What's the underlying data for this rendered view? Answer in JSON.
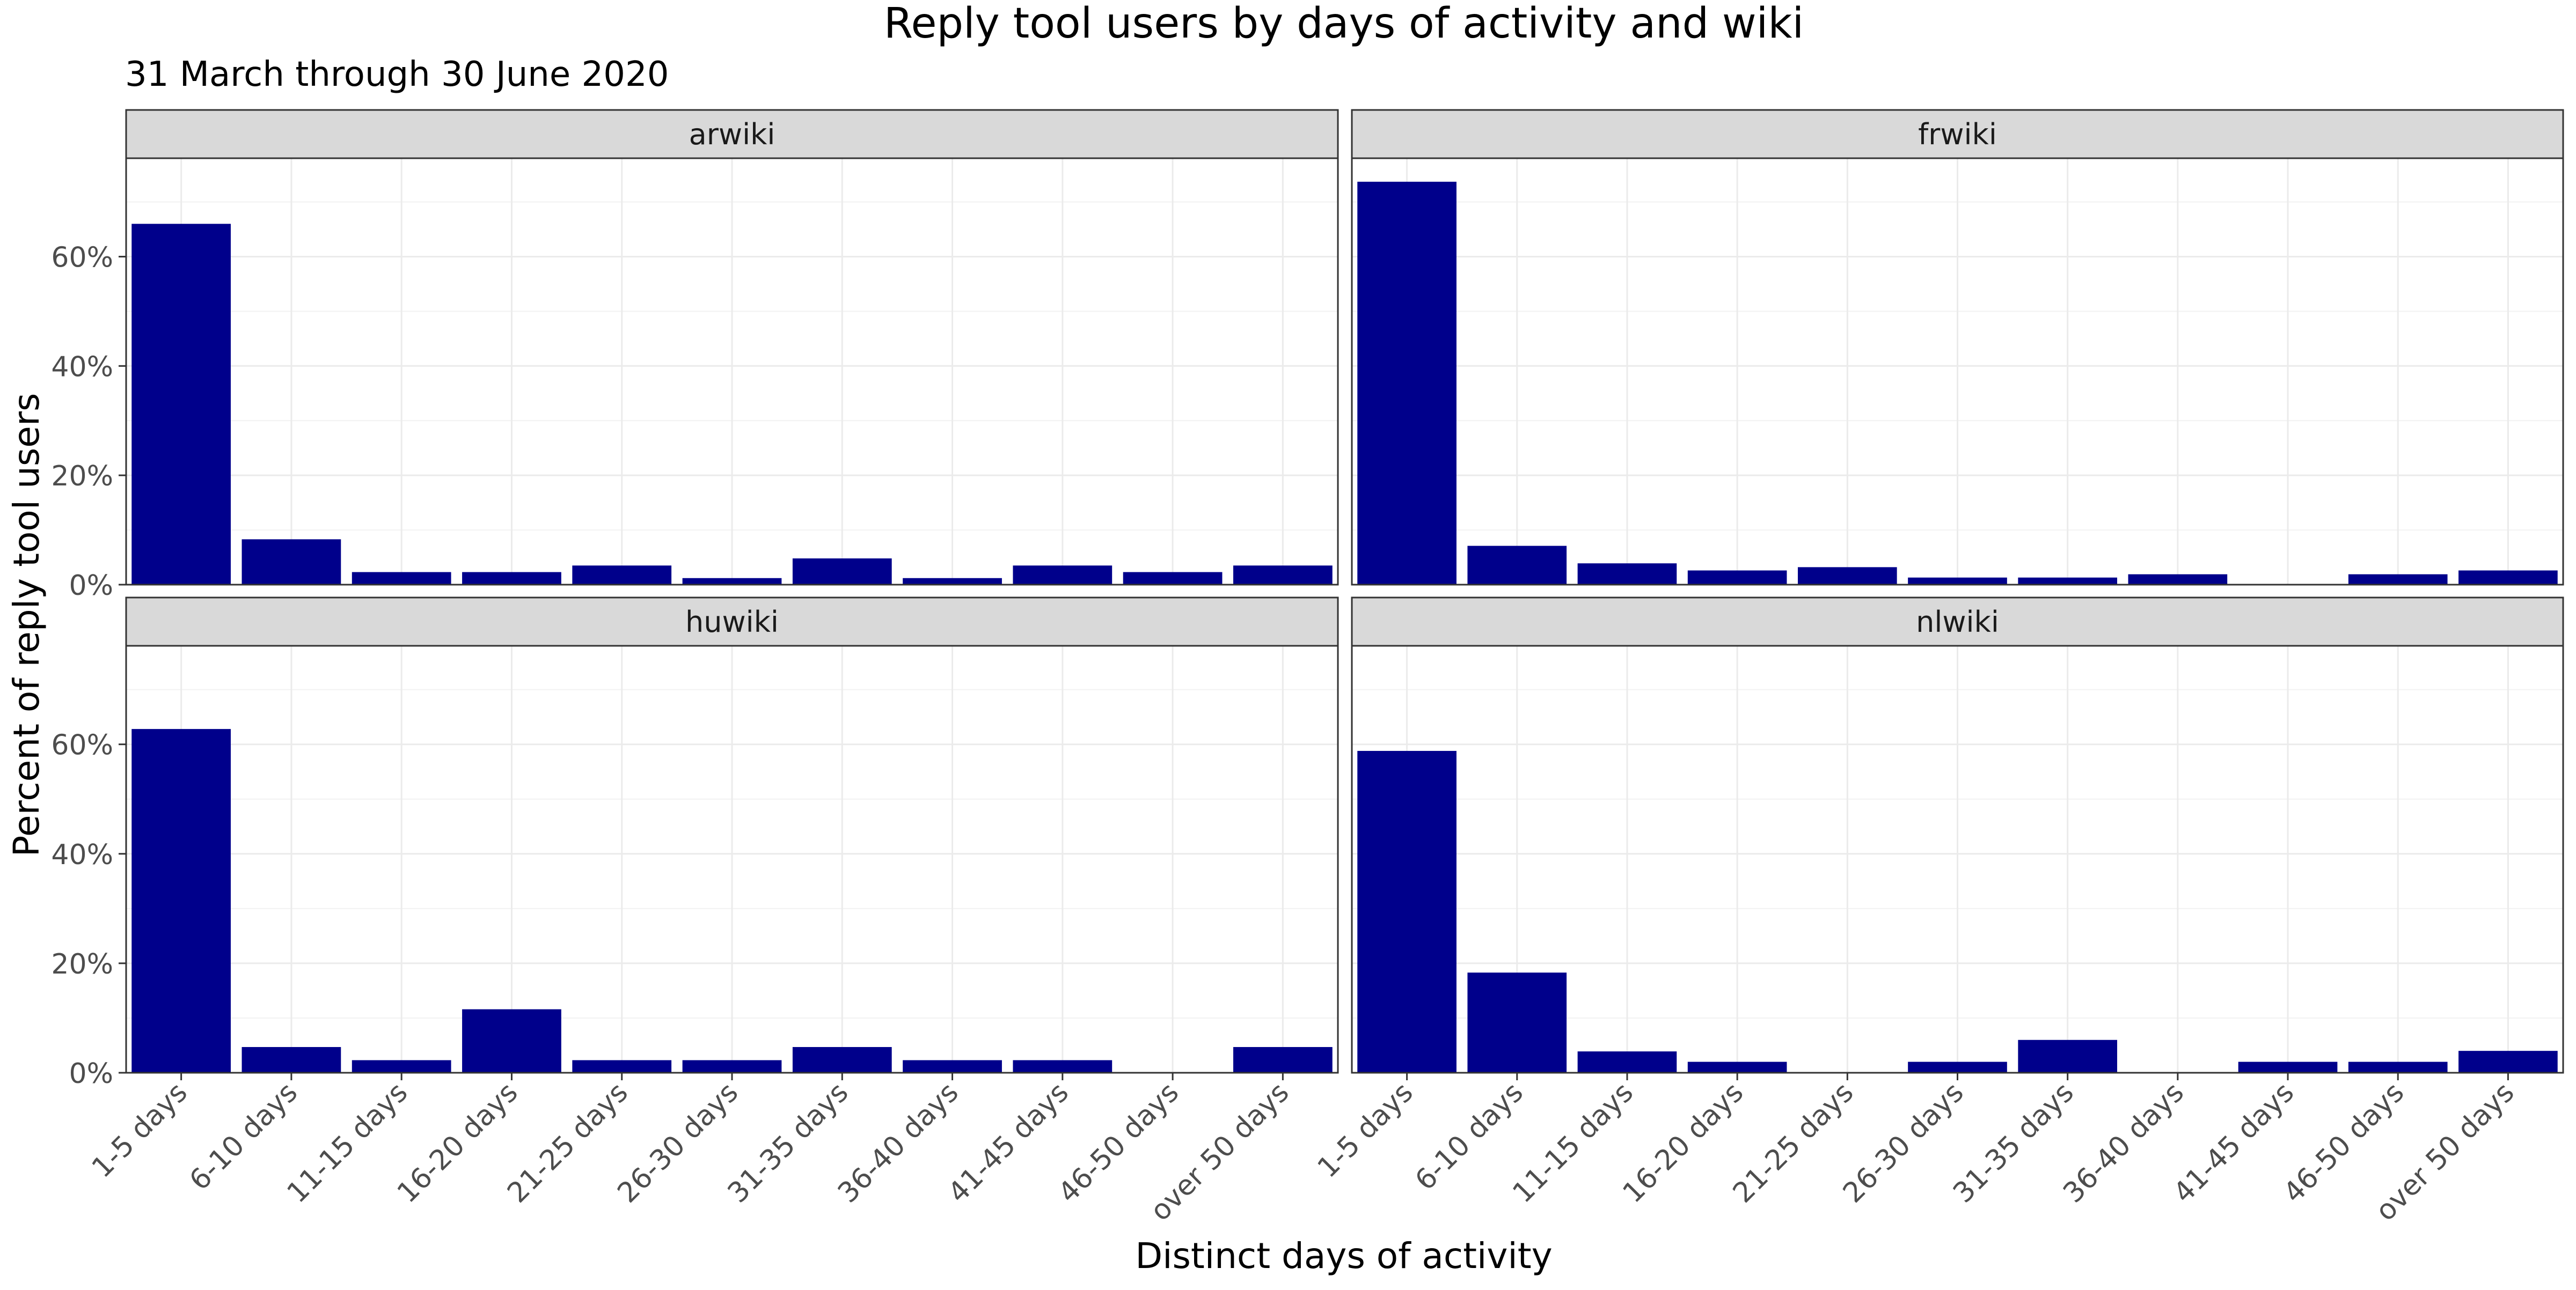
{
  "chart_data": {
    "type": "bar",
    "title": "Reply tool users by days of activity and wiki",
    "subtitle": "31 March through 30 June 2020",
    "xlabel": "Distinct days of activity",
    "ylabel": "Percent of reply tool users",
    "ylim": [
      0,
      0.78
    ],
    "yticks": [
      0,
      0.2,
      0.4,
      0.6
    ],
    "ytick_labels": [
      "0%",
      "20%",
      "40%",
      "60%"
    ],
    "grid": true,
    "bar_color": "#00008B",
    "categories": [
      "1-5 days",
      "6-10 days",
      "11-15 days",
      "16-20 days",
      "21-25 days",
      "26-30 days",
      "31-35 days",
      "36-40 days",
      "41-45 days",
      "46-50 days",
      "over 50 days"
    ],
    "panels": [
      {
        "name": "arwiki",
        "values": [
          0.66,
          0.083,
          0.023,
          0.023,
          0.035,
          0.012,
          0.048,
          0.012,
          0.035,
          0.023,
          0.035
        ]
      },
      {
        "name": "frwiki",
        "values": [
          0.737,
          0.071,
          0.039,
          0.026,
          0.032,
          0.013,
          0.013,
          0.019,
          null,
          0.019,
          0.026
        ]
      },
      {
        "name": "huwiki",
        "values": [
          0.628,
          0.047,
          0.023,
          0.116,
          0.023,
          0.023,
          0.047,
          0.023,
          0.023,
          null,
          0.047
        ]
      },
      {
        "name": "nlwiki",
        "values": [
          0.588,
          0.183,
          0.039,
          0.02,
          null,
          0.02,
          0.06,
          null,
          0.02,
          0.02,
          0.04
        ]
      }
    ]
  }
}
